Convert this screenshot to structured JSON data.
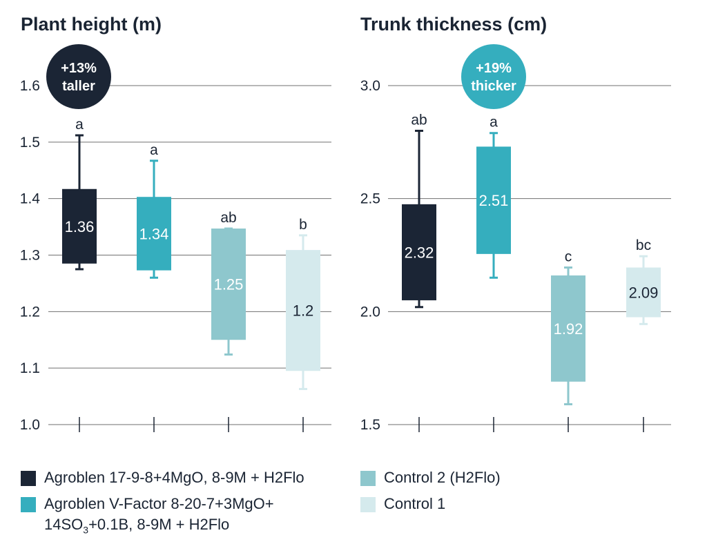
{
  "chart_data": [
    {
      "type": "box",
      "title": "Plant height (m)",
      "ylim": [
        1.0,
        1.6
      ],
      "yticks": [
        "1.0",
        "1.1",
        "1.2",
        "1.3",
        "1.4",
        "1.5",
        "1.6"
      ],
      "grid": true,
      "series": [
        {
          "name": "Agroblen 17-9-8+4MgO, 8-9M + H2Flo",
          "label": "1.36",
          "q1": 1.285,
          "q3": 1.417,
          "min": 1.275,
          "max": 1.512,
          "significance": "a"
        },
        {
          "name": "Agroblen V-Factor 8-20-7+3MgO+14SO3+0.1B, 8-9M + H2Flo",
          "label": "1.34",
          "q1": 1.273,
          "q3": 1.403,
          "min": 1.26,
          "max": 1.467,
          "significance": "a"
        },
        {
          "name": "Control 2 (H2Flo)",
          "label": "1.25",
          "q1": 1.15,
          "q3": 1.347,
          "min": 1.124,
          "max": 1.347,
          "significance": "ab"
        },
        {
          "name": "Control 1",
          "label": "1.2",
          "q1": 1.095,
          "q3": 1.309,
          "min": 1.063,
          "max": 1.335,
          "significance": "b"
        }
      ],
      "badge": {
        "line1": "+13%",
        "line2": "taller",
        "color": "#1b2535"
      }
    },
    {
      "type": "box",
      "title": "Trunk thickness (cm)",
      "ylim": [
        1.5,
        3.0
      ],
      "yticks": [
        "1.5",
        "2.0",
        "2.5",
        "3.0"
      ],
      "grid": true,
      "series": [
        {
          "name": "Agroblen 17-9-8+4MgO, 8-9M + H2Flo",
          "label": "2.32",
          "q1": 2.05,
          "q3": 2.475,
          "min": 2.02,
          "max": 2.8,
          "significance": "ab"
        },
        {
          "name": "Agroblen V-Factor 8-20-7+3MgO+14SO3+0.1B, 8-9M + H2Flo",
          "label": "2.51",
          "q1": 2.255,
          "q3": 2.73,
          "min": 2.15,
          "max": 2.79,
          "significance": "a"
        },
        {
          "name": "Control 2 (H2Flo)",
          "label": "1.92",
          "q1": 1.69,
          "q3": 2.16,
          "min": 1.59,
          "max": 2.195,
          "significance": "c"
        },
        {
          "name": "Control 1",
          "label": "2.09",
          "q1": 1.975,
          "q3": 2.195,
          "min": 1.945,
          "max": 2.245,
          "significance": "bc"
        }
      ],
      "badge": {
        "line1": "+19%",
        "line2": "thicker",
        "color": "#35aebe"
      }
    }
  ],
  "colors": {
    "series": [
      "#1b2535",
      "#35aebe",
      "#8ec7cd",
      "#d5eaed"
    ],
    "value_text_light": "#ffffff",
    "value_text_dark": "#1b2535",
    "grid": "#6f6f6f",
    "text": "#1a2433"
  },
  "legend": [
    {
      "label": "Agroblen 17-9-8+4MgO, 8-9M + H2Flo"
    },
    {
      "label_line1": "Agroblen V-Factor 8-20-7+3MgO+",
      "label_line2_pre": "14SO",
      "label_line2_sub": "3",
      "label_line2_post": "+0.1B, 8-9M + H2Flo"
    },
    {
      "label": "Control 2 (H2Flo)"
    },
    {
      "label": "Control 1"
    }
  ]
}
